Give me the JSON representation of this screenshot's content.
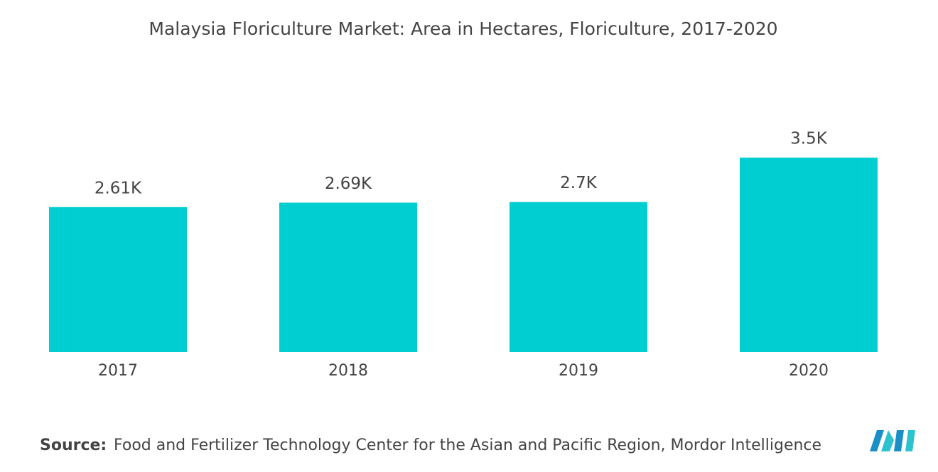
{
  "chart_data": {
    "type": "bar",
    "title": "Malaysia Floriculture Market: Area in Hectares, Floriculture, 2017-2020",
    "categories": [
      "2017",
      "2018",
      "2019",
      "2020"
    ],
    "values": [
      2610,
      2690,
      2700,
      3500
    ],
    "value_labels": [
      "2.61K",
      "2.69K",
      "2.7K",
      "3.5K"
    ],
    "color": "#00ced1",
    "ylim": [
      0,
      4000
    ],
    "source_label": "Source:",
    "source": "Food and Fertilizer Technology Center for the Asian and Pacific Region, Mordor Intelligence"
  }
}
